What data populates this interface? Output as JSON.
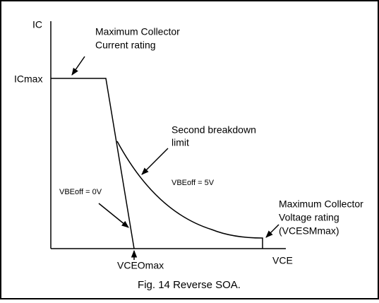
{
  "axes": {
    "y_label": "IC",
    "x_label": "VCE",
    "ic_max": "ICmax",
    "vceo_max": "VCEOmax"
  },
  "annotations": {
    "current_rating": [
      "Maximum Collector",
      "Current rating"
    ],
    "second_breakdown": [
      "Second breakdown",
      "limit"
    ],
    "vbe_5v": "VBEoff = 5V",
    "vbe_0v": "VBEoff = 0V",
    "voltage_rating": [
      "Maximum Collector",
      "Voltage rating",
      "(VCESMmax)"
    ]
  },
  "caption": "Fig. 14  Reverse SOA."
}
